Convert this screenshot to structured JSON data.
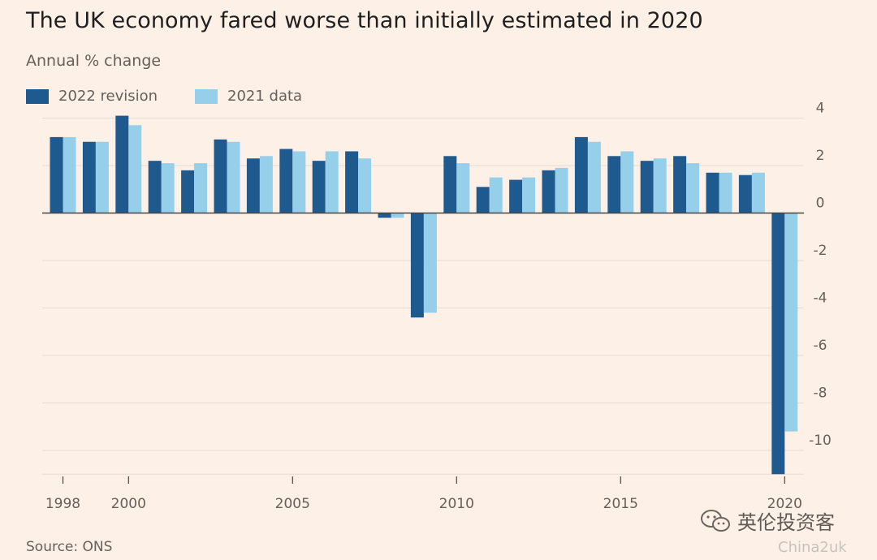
{
  "chart_data": {
    "type": "bar",
    "title": "The UK economy fared worse than initially estimated in 2020",
    "subtitle": "Annual % change",
    "source": "Source: ONS",
    "x": [
      1998,
      1999,
      2000,
      2001,
      2002,
      2003,
      2004,
      2005,
      2006,
      2007,
      2008,
      2009,
      2010,
      2011,
      2012,
      2013,
      2014,
      2015,
      2016,
      2017,
      2018,
      2019,
      2020
    ],
    "x_tick_labels": [
      "1998",
      "2000",
      "2005",
      "2010",
      "2015",
      "2020"
    ],
    "x_tick_values": [
      1998,
      2000,
      2005,
      2010,
      2015,
      2020
    ],
    "y_ticks": [
      4,
      2,
      0,
      -2,
      -4,
      -6,
      -8,
      -10
    ],
    "y_tick_labels": [
      "4",
      "2",
      "0",
      "-2",
      "-4",
      "-6",
      "-8",
      "-10"
    ],
    "ylim": [
      -11,
      4.4
    ],
    "grid": true,
    "y_axis_side": "right",
    "legend_position": "top-left",
    "series": [
      {
        "name": "2022 revision",
        "color": "#1f5a8f",
        "values": [
          3.2,
          3.0,
          4.1,
          2.2,
          1.8,
          3.1,
          2.3,
          2.7,
          2.2,
          2.6,
          -0.2,
          -4.4,
          2.4,
          1.1,
          1.4,
          1.8,
          3.2,
          2.4,
          2.2,
          2.4,
          1.7,
          1.6,
          -11.0
        ]
      },
      {
        "name": "2021 data",
        "color": "#96cfea",
        "values": [
          3.2,
          3.0,
          3.7,
          2.1,
          2.1,
          3.0,
          2.4,
          2.6,
          2.6,
          2.3,
          -0.2,
          -4.2,
          2.1,
          1.5,
          1.5,
          1.9,
          3.0,
          2.6,
          2.3,
          2.1,
          1.7,
          1.7,
          -9.2
        ]
      }
    ]
  },
  "watermark": {
    "icon": "wechat-icon",
    "text": "英伦投资客",
    "sub": "China2uk"
  }
}
